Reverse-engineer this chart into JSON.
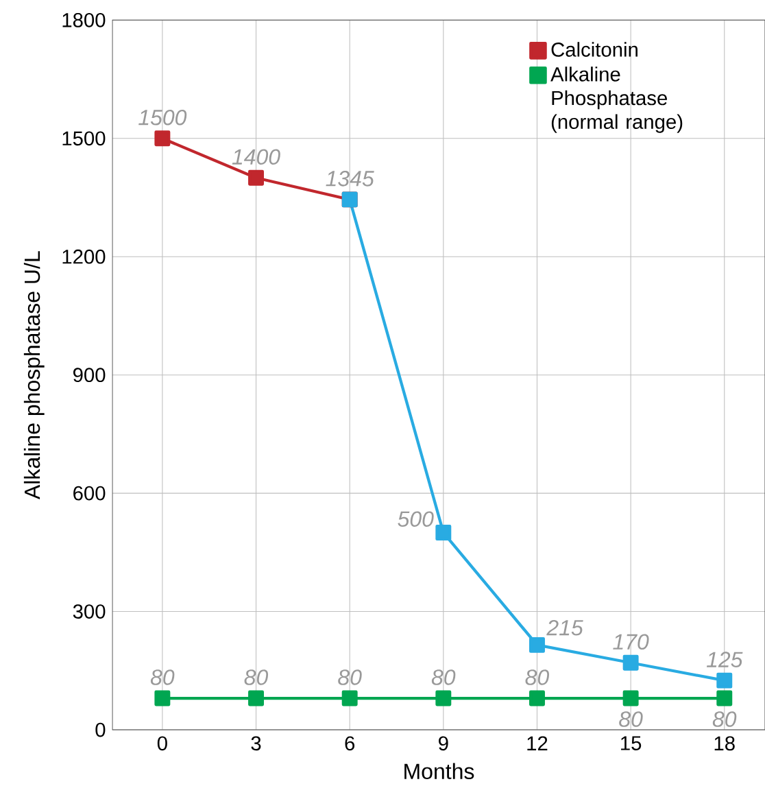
{
  "chart_data": {
    "type": "line",
    "xlabel": "Months",
    "ylabel": "Alkaline phosphatase U/L",
    "xlim": [
      -1.6,
      19.3
    ],
    "ylim": [
      0,
      1800
    ],
    "xticks": [
      0,
      3,
      6,
      9,
      12,
      15,
      18
    ],
    "yticks": [
      0,
      300,
      600,
      900,
      1200,
      1500,
      1800
    ],
    "grid": true,
    "legend": "top right",
    "marker": "square",
    "series": [
      {
        "name": "Calcitonin",
        "color": "#c1272d",
        "x": [
          0,
          3,
          6
        ],
        "values": [
          1500,
          1400,
          1345
        ],
        "value_labels": [
          "1500",
          "1400",
          null
        ]
      },
      {
        "color": "#29abe2",
        "x": [
          6,
          9,
          12,
          15,
          18
        ],
        "values": [
          1345,
          500,
          215,
          170,
          125
        ],
        "value_labels": [
          "1345",
          "500",
          "215",
          "170",
          "125"
        ]
      },
      {
        "name": "Alkaline Phosphatase (normal range)",
        "color": "#00a651",
        "x": [
          0,
          3,
          6,
          9,
          12,
          15,
          18
        ],
        "values": [
          80,
          80,
          80,
          80,
          80,
          80,
          80
        ],
        "value_labels": [
          "80",
          "80",
          "80",
          "80",
          "80",
          "80",
          "80"
        ]
      }
    ]
  }
}
